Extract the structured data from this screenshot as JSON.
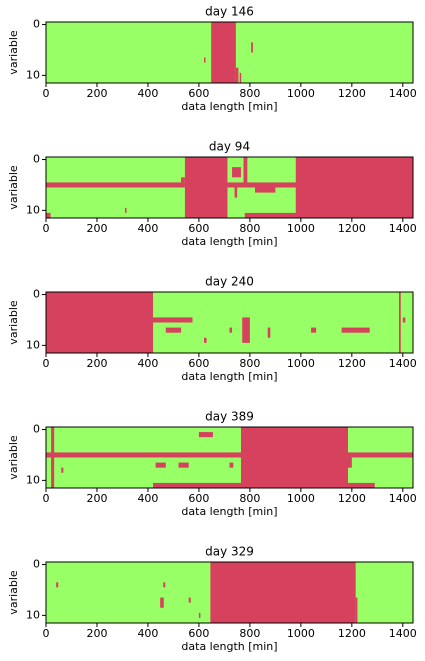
{
  "chart_data": [
    {
      "type": "heatmap",
      "title": "day 146",
      "xlabel": "data length [min]",
      "ylabel": "variable",
      "xlim": [
        0,
        1440
      ],
      "ylim": [
        11.5,
        -0.5
      ],
      "xticks": [
        0,
        200,
        400,
        600,
        800,
        1000,
        1200,
        1400
      ],
      "yticks": [
        0,
        10
      ],
      "background_color": "#99ff66",
      "color": "#d6415d",
      "regions": [
        {
          "x": [
            648,
            745
          ],
          "rows": [
            0,
            11
          ]
        },
        {
          "x": [
            745,
            755
          ],
          "rows": [
            9,
            11
          ]
        },
        {
          "x": [
            805,
            812
          ],
          "rows": [
            4,
            5
          ]
        },
        {
          "x": [
            620,
            626
          ],
          "rows": [
            7,
            7
          ]
        },
        {
          "x": [
            760,
            766
          ],
          "rows": [
            10,
            11
          ]
        }
      ]
    },
    {
      "type": "heatmap",
      "title": "day 94",
      "xlabel": "data length [min]",
      "ylabel": "variable",
      "xlim": [
        0,
        1440
      ],
      "ylim": [
        11.5,
        -0.5
      ],
      "xticks": [
        0,
        200,
        400,
        600,
        800,
        1000,
        1200,
        1400
      ],
      "yticks": [
        0,
        10
      ],
      "background_color": "#99ff66",
      "color": "#d6415d",
      "regions": [
        {
          "x": [
            545,
            712
          ],
          "rows": [
            0,
            11
          ]
        },
        {
          "x": [
            0,
            545
          ],
          "rows": [
            5,
            5
          ]
        },
        {
          "x": [
            712,
            990
          ],
          "rows": [
            5,
            5
          ]
        },
        {
          "x": [
            980,
            1440
          ],
          "rows": [
            0,
            11
          ]
        },
        {
          "x": [
            780,
            985
          ],
          "rows": [
            11,
            11
          ]
        },
        {
          "x": [
            730,
            765
          ],
          "rows": [
            2,
            3
          ]
        },
        {
          "x": [
            775,
            790
          ],
          "rows": [
            0,
            5
          ]
        },
        {
          "x": [
            740,
            750
          ],
          "rows": [
            6,
            7
          ]
        },
        {
          "x": [
            820,
            900
          ],
          "rows": [
            6,
            6
          ]
        },
        {
          "x": [
            0,
            18
          ],
          "rows": [
            11,
            11
          ]
        },
        {
          "x": [
            530,
            545
          ],
          "rows": [
            4,
            4
          ]
        },
        {
          "x": [
            310,
            316
          ],
          "rows": [
            10,
            10
          ]
        }
      ]
    },
    {
      "type": "heatmap",
      "title": "day 240",
      "xlabel": "data length [min]",
      "ylabel": "variable",
      "xlim": [
        0,
        1440
      ],
      "ylim": [
        11.5,
        -0.5
      ],
      "xticks": [
        0,
        200,
        400,
        600,
        800,
        1000,
        1200,
        1400
      ],
      "yticks": [
        0,
        10
      ],
      "background_color": "#99ff66",
      "color": "#d6415d",
      "regions": [
        {
          "x": [
            0,
            420
          ],
          "rows": [
            0,
            11
          ]
        },
        {
          "x": [
            420,
            575
          ],
          "rows": [
            5,
            5
          ]
        },
        {
          "x": [
            470,
            530
          ],
          "rows": [
            7,
            7
          ]
        },
        {
          "x": [
            770,
            800
          ],
          "rows": [
            5,
            9
          ]
        },
        {
          "x": [
            1160,
            1270
          ],
          "rows": [
            7,
            7
          ]
        },
        {
          "x": [
            1385,
            1392
          ],
          "rows": [
            0,
            11
          ]
        },
        {
          "x": [
            1040,
            1060
          ],
          "rows": [
            7,
            7
          ]
        },
        {
          "x": [
            870,
            880
          ],
          "rows": [
            7,
            8
          ]
        },
        {
          "x": [
            620,
            630
          ],
          "rows": [
            9,
            9
          ]
        },
        {
          "x": [
            1400,
            1410
          ],
          "rows": [
            5,
            5
          ]
        },
        {
          "x": [
            720,
            730
          ],
          "rows": [
            7,
            7
          ]
        }
      ]
    },
    {
      "type": "heatmap",
      "title": "day 389",
      "xlabel": "data length [min]",
      "ylabel": "variable",
      "xlim": [
        0,
        1440
      ],
      "ylim": [
        11.5,
        -0.5
      ],
      "xticks": [
        0,
        200,
        400,
        600,
        800,
        1000,
        1200,
        1400
      ],
      "yticks": [
        0,
        10
      ],
      "background_color": "#99ff66",
      "color": "#d6415d",
      "regions": [
        {
          "x": [
            20,
            32
          ],
          "rows": [
            0,
            11
          ]
        },
        {
          "x": [
            0,
            1440
          ],
          "rows": [
            5,
            5
          ]
        },
        {
          "x": [
            765,
            1185
          ],
          "rows": [
            0,
            11
          ]
        },
        {
          "x": [
            420,
            1290
          ],
          "rows": [
            11,
            11
          ]
        },
        {
          "x": [
            600,
            655
          ],
          "rows": [
            1,
            1
          ]
        },
        {
          "x": [
            430,
            470
          ],
          "rows": [
            7,
            7
          ]
        },
        {
          "x": [
            520,
            560
          ],
          "rows": [
            7,
            7
          ]
        },
        {
          "x": [
            720,
            735
          ],
          "rows": [
            7,
            7
          ]
        },
        {
          "x": [
            60,
            68
          ],
          "rows": [
            8,
            8
          ]
        },
        {
          "x": [
            1185,
            1200
          ],
          "rows": [
            6,
            7
          ]
        }
      ]
    },
    {
      "type": "heatmap",
      "title": "day 329",
      "xlabel": "data length [min]",
      "ylabel": "variable",
      "xlim": [
        0,
        1440
      ],
      "ylim": [
        11.5,
        -0.5
      ],
      "xticks": [
        0,
        200,
        400,
        600,
        800,
        1000,
        1200,
        1400
      ],
      "yticks": [
        0,
        10
      ],
      "background_color": "#99ff66",
      "color": "#d6415d",
      "regions": [
        {
          "x": [
            645,
            1215
          ],
          "rows": [
            0,
            11
          ]
        },
        {
          "x": [
            448,
            462
          ],
          "rows": [
            7,
            8
          ]
        },
        {
          "x": [
            40,
            48
          ],
          "rows": [
            4,
            4
          ]
        },
        {
          "x": [
            460,
            468
          ],
          "rows": [
            4,
            4
          ]
        },
        {
          "x": [
            560,
            568
          ],
          "rows": [
            7,
            7
          ]
        },
        {
          "x": [
            600,
            606
          ],
          "rows": [
            10,
            10
          ]
        },
        {
          "x": [
            1215,
            1222
          ],
          "rows": [
            7,
            11
          ]
        }
      ]
    }
  ]
}
